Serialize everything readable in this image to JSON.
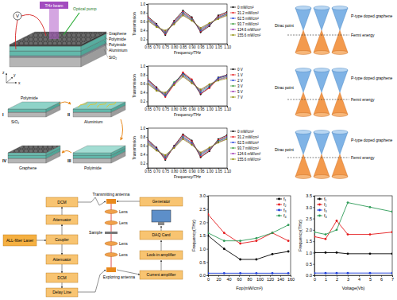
{
  "chart_data": [
    {
      "type": "line",
      "x": [
        0.65,
        0.7,
        0.75,
        0.8,
        0.85,
        0.9,
        0.95,
        1.0,
        1.05,
        1.1
      ],
      "xlim": [
        0.65,
        1.1
      ],
      "xticks": [
        0.65,
        {
          "value": 0.7,
          "label": "0.70"
        },
        0.75,
        {
          "value": 0.8,
          "label": "0.80"
        },
        0.85,
        {
          "value": 0.9,
          "label": "0.90"
        },
        0.95,
        {
          "value": 1.0,
          "label": "1.00"
        },
        1.05,
        {
          "value": 1.1,
          "label": "1.10"
        }
      ],
      "ylim": [
        0.1,
        1.0
      ],
      "yticks": [
        0.2,
        0.4,
        0.6,
        0.8,
        {
          "value": 1.0,
          "label": "1.0"
        }
      ],
      "x_label": "Frequency/THz",
      "y_label": "Transmission",
      "legend": "right",
      "marker": "circle",
      "series": [
        {
          "name": "0 mW/cm²",
          "color": "#000000",
          "values": [
            0.72,
            0.55,
            0.3,
            0.62,
            0.85,
            0.7,
            0.36,
            0.5,
            0.74,
            0.82
          ]
        },
        {
          "name": "31.2 mW/cm²",
          "color": "#e41a1c",
          "values": [
            0.7,
            0.53,
            0.32,
            0.6,
            0.82,
            0.68,
            0.38,
            0.52,
            0.72,
            0.8
          ]
        },
        {
          "name": "62.5 mW/cm²",
          "color": "#1f3fd8",
          "values": [
            0.68,
            0.52,
            0.34,
            0.58,
            0.8,
            0.66,
            0.4,
            0.53,
            0.7,
            0.78
          ]
        },
        {
          "name": "93.7 mW/cm²",
          "color": "#3a9a3a",
          "values": [
            0.66,
            0.5,
            0.36,
            0.56,
            0.78,
            0.65,
            0.42,
            0.55,
            0.69,
            0.77
          ]
        },
        {
          "name": "124.6 mW/cm²",
          "color": "#9b30b0",
          "values": [
            0.64,
            0.49,
            0.38,
            0.55,
            0.76,
            0.63,
            0.44,
            0.56,
            0.68,
            0.75
          ]
        },
        {
          "name": "155.6 mW/cm²",
          "color": "#8b8b00",
          "values": [
            0.62,
            0.48,
            0.4,
            0.54,
            0.74,
            0.62,
            0.46,
            0.57,
            0.66,
            0.74
          ]
        }
      ]
    },
    {
      "type": "line",
      "x": [
        0.65,
        0.7,
        0.75,
        0.8,
        0.85,
        0.9,
        0.95,
        1.0,
        1.05,
        1.1
      ],
      "xlim": [
        0.65,
        1.1
      ],
      "xticks": [
        0.65,
        {
          "value": 0.7,
          "label": "0.70"
        },
        0.75,
        {
          "value": 0.8,
          "label": "0.80"
        },
        0.85,
        {
          "value": 0.9,
          "label": "0.90"
        },
        0.95,
        {
          "value": 1.0,
          "label": "1.00"
        },
        1.05,
        {
          "value": 1.1,
          "label": "1.10"
        }
      ],
      "ylim": [
        0.1,
        1.0
      ],
      "yticks": [
        0.2,
        0.4,
        0.6,
        0.8,
        {
          "value": 1.0,
          "label": "1.0"
        }
      ],
      "x_label": "Frequency/THz",
      "y_label": "Transmission",
      "legend": "right",
      "marker": "circle",
      "series": [
        {
          "name": "0 V",
          "color": "#000000",
          "values": [
            0.7,
            0.52,
            0.32,
            0.6,
            0.84,
            0.68,
            0.36,
            0.52,
            0.74,
            0.8
          ]
        },
        {
          "name": "1 V",
          "color": "#e41a1c",
          "values": [
            0.69,
            0.5,
            0.3,
            0.58,
            0.86,
            0.7,
            0.38,
            0.5,
            0.72,
            0.79
          ]
        },
        {
          "name": "2 V",
          "color": "#1f3fd8",
          "values": [
            0.67,
            0.48,
            0.33,
            0.62,
            0.82,
            0.66,
            0.4,
            0.54,
            0.73,
            0.78
          ]
        },
        {
          "name": "3 V",
          "color": "#3a9a3a",
          "values": [
            0.64,
            0.46,
            0.36,
            0.64,
            0.8,
            0.64,
            0.43,
            0.56,
            0.7,
            0.76
          ]
        },
        {
          "name": "5 V",
          "color": "#9b30b0",
          "values": [
            0.62,
            0.45,
            0.38,
            0.6,
            0.78,
            0.62,
            0.45,
            0.58,
            0.69,
            0.74
          ]
        },
        {
          "name": "7 V",
          "color": "#8b8b00",
          "values": [
            0.6,
            0.44,
            0.4,
            0.57,
            0.76,
            0.61,
            0.47,
            0.59,
            0.67,
            0.72
          ]
        }
      ]
    },
    {
      "type": "line",
      "x": [
        0.65,
        0.7,
        0.75,
        0.8,
        0.85,
        0.9,
        0.95,
        1.0,
        1.05,
        1.1
      ],
      "xlim": [
        0.65,
        1.1
      ],
      "xticks": [
        0.65,
        {
          "value": 0.7,
          "label": "0.70"
        },
        0.75,
        {
          "value": 0.8,
          "label": "0.80"
        },
        0.85,
        {
          "value": 0.9,
          "label": "0.90"
        },
        0.95,
        {
          "value": 1.0,
          "label": "1.00"
        },
        1.05,
        {
          "value": 1.1,
          "label": "1.10"
        }
      ],
      "ylim": [
        0.1,
        1.0
      ],
      "yticks": [
        0.2,
        0.4,
        0.6,
        0.8,
        {
          "value": 1.0,
          "label": "1.0"
        }
      ],
      "x_label": "Frequency/THz",
      "y_label": "Transmission",
      "legend": "right",
      "marker": "circle",
      "series": [
        {
          "name": "0 mW/cm²",
          "color": "#000000",
          "values": [
            0.74,
            0.56,
            0.28,
            0.6,
            0.86,
            0.72,
            0.34,
            0.48,
            0.75,
            0.84
          ]
        },
        {
          "name": "31.2 mW/cm²",
          "color": "#e41a1c",
          "values": [
            0.72,
            0.54,
            0.3,
            0.59,
            0.84,
            0.7,
            0.36,
            0.5,
            0.73,
            0.82
          ]
        },
        {
          "name": "62.5 mW/cm²",
          "color": "#1f3fd8",
          "values": [
            0.7,
            0.53,
            0.33,
            0.58,
            0.81,
            0.67,
            0.39,
            0.52,
            0.71,
            0.8
          ]
        },
        {
          "name": "93.7 mW/cm²",
          "color": "#3a9a3a",
          "values": [
            0.68,
            0.51,
            0.35,
            0.57,
            0.79,
            0.65,
            0.41,
            0.54,
            0.7,
            0.78
          ]
        },
        {
          "name": "124.6 mW/cm²",
          "color": "#9b30b0",
          "values": [
            0.66,
            0.5,
            0.37,
            0.56,
            0.77,
            0.64,
            0.43,
            0.55,
            0.68,
            0.76
          ]
        },
        {
          "name": "155.6 mW/cm²",
          "color": "#8b8b00",
          "values": [
            0.64,
            0.49,
            0.39,
            0.55,
            0.75,
            0.62,
            0.45,
            0.56,
            0.67,
            0.75
          ]
        }
      ]
    },
    {
      "type": "line",
      "x": [
        0,
        31.2,
        62.5,
        93.7,
        124.6,
        155.6
      ],
      "xlim": [
        0,
        160
      ],
      "xticks": [
        0,
        20,
        40,
        60,
        80,
        100,
        120,
        140,
        160
      ],
      "ylim": [
        0,
        3
      ],
      "yticks": [
        {
          "value": 0,
          "label": "0.0"
        },
        0.5,
        {
          "value": 1,
          "label": "1.0"
        },
        1.5,
        {
          "value": 2,
          "label": "2.0"
        },
        2.5,
        {
          "value": 3,
          "label": "3.0"
        }
      ],
      "x_label": "Fop(mW/cm²)",
      "y_label": "Frequency(THz)",
      "legend": "upper right",
      "marker": "circle",
      "series": [
        {
          "name": "f₁",
          "color": "#000000",
          "values": [
            1.5,
            1.0,
            0.6,
            0.6,
            0.8,
            0.9
          ]
        },
        {
          "name": "f₂",
          "color": "#e41a1c",
          "values": [
            2.3,
            1.6,
            1.2,
            1.3,
            1.6,
            1.3
          ]
        },
        {
          "name": "f₃",
          "color": "#1f3fd8",
          "values": [
            0.08,
            0.08,
            0.08,
            0.08,
            0.08,
            0.08
          ]
        },
        {
          "name": "f₄",
          "color": "#2e9b57",
          "values": [
            1.6,
            1.3,
            1.3,
            1.4,
            1.6,
            1.9
          ]
        }
      ]
    },
    {
      "type": "line",
      "x": [
        0,
        1,
        2,
        3,
        5,
        7
      ],
      "xlim": [
        0,
        7
      ],
      "xticks": [
        0,
        1,
        2,
        3,
        4,
        5,
        6,
        7
      ],
      "ylim": [
        0,
        3.5
      ],
      "yticks": [
        {
          "value": 0,
          "label": "0.0"
        },
        0.5,
        {
          "value": 1,
          "label": "1.0"
        },
        1.5,
        {
          "value": 2,
          "label": "2.0"
        },
        2.5,
        {
          "value": 3,
          "label": "3.0"
        },
        3.5
      ],
      "x_label": "Voltage(Vb)",
      "y_label": "Frequency(THz)",
      "legend": "upper left",
      "marker": "circle",
      "series": [
        {
          "name": "f₁",
          "color": "#000000",
          "values": [
            1.0,
            1.0,
            1.0,
            0.95,
            0.95,
            0.95
          ]
        },
        {
          "name": "f₂",
          "color": "#e41a1c",
          "values": [
            1.7,
            1.6,
            2.4,
            1.8,
            1.8,
            1.9
          ]
        },
        {
          "name": "f₃",
          "color": "#1f3fd8",
          "values": [
            0.1,
            0.1,
            0.1,
            0.1,
            0.1,
            0.1
          ]
        },
        {
          "name": "f₄",
          "color": "#2e9b57",
          "values": [
            1.9,
            1.8,
            2.0,
            3.2,
            3.0,
            2.8
          ]
        }
      ]
    }
  ],
  "device": {
    "thz_beam": "THz beam",
    "optical_pump": "Optical pump",
    "voltage": "V",
    "graphene": "Graphene",
    "polyimide_top": "Polyimide",
    "polyimide_bottom": "Polyimide",
    "aluminium": "Aluminium",
    "sio2": "SiO₂",
    "axes": [
      "x",
      "y",
      "z"
    ]
  },
  "fabrication": {
    "steps": [
      "I",
      "II",
      "III",
      "IV"
    ],
    "polyimide_1": "Polyimide",
    "sio2": "SiO₂",
    "aluminium": "Aluminium",
    "polyimide_2": "Polyimide",
    "graphene": "Graphene"
  },
  "setup": {
    "laser": "ALL-fiber Laser",
    "dcm_top": "DCM",
    "attenuator_top": "Attenuator",
    "coupler": "Coupler",
    "attenuator_bottom": "Attenuator",
    "dcm_bottom": "DCM",
    "delay_line": "Delay Line",
    "transmitting_antenna": "Transmitting antenna",
    "lenses": [
      "Lens",
      "Lens",
      "Lens",
      "Lens"
    ],
    "sample": "Sample",
    "exploring_antenna": "Exploring antenna",
    "generator": "Generator",
    "daq": "DAQ Card",
    "lockin": "Lock-in amplifier",
    "current_amp": "Current amplifier"
  },
  "band_diagrams": [
    {
      "title": "P-type doped graphene",
      "dirac": "Dirac point",
      "fermi": "Fermi energy"
    },
    {
      "title": "P-type doped graphene",
      "dirac": "Dirac point",
      "fermi": "Fermi energy"
    },
    {
      "title": "P-type doped graphene",
      "dirac": "Dirac point",
      "fermi": "Fermi energy"
    }
  ]
}
